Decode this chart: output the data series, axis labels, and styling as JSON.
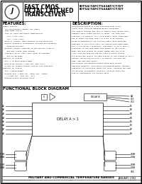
{
  "title_line1": "FAST CMOS",
  "title_line2": "OCTAL LATCHED",
  "title_line3": "TRANSCEIVER",
  "part_line1": "IDT54/74FCT543AT/CT/DT",
  "part_line2": "IDT54/74FCT544AT/CT/DT",
  "features_title": "FEATURES:",
  "description_title": "DESCRIPTION:",
  "block_diagram_title": "FUNCTIONAL BLOCK DIAGRAM",
  "footer_mil": "MILITARY AND COMMERCIAL TEMPERATURE RANGES",
  "footer_date": "JANUARY 1992",
  "footer_copy": "©1993 Integrated Device Technology, Inc.",
  "footer_rev": "R-9",
  "footer_doc": "DSC-0001",
  "bg_color": "#f0f0f0",
  "features": [
    "Common features",
    "  Low input/output leakage <1μA (max.)",
    "  CMOS power levels",
    "  True TTL input and output compatibility",
    "    •VIH = 2.0V (typ.)",
    "    •VIL = 0.8V (typ.)",
    "  Meets or exceeds JEDEC standard 18 specifications",
    "  Product available in Radiation Tolerant and Radiation",
    "    Enhanced versions",
    "  Military product compliant to MIL-STD-883, Class B",
    "    and CECC listed (dual marked)",
    "  Available in SO, SOIC, SSOP, QSOP, DX packages",
    "    and LCC packages",
    "Features for FCT543:",
    "  Std. A, B and D speed grades",
    "  High-drive outputs (-64mA typ, 12mA typ.)",
    "  Allows all disable outputs control line inversion",
    "Features for FCT544:",
    "  Std. A speed grades",
    "  Receive only (-1mHz typ, -500μA typ. -200μA)",
    "    (-4.5mA typ, -12mA typ, -30.)",
    "  Reduced system switching noise"
  ],
  "description": [
    "The FCT543/FCT544T1 is a non-inverting octal trans-",
    "ceiver built using an advanced BiCMOS technology.",
    "This device contains two sets of eight D-type latches with",
    "separate input-output control to select. For data flow",
    "from bus A to buses B: the A-to-B Enable (CEAB) input must",
    "LOW to enable the data from A to B-bus to be latched.",
    "B1-B8 as indicated in the Function Table. With CEAB LOW,",
    "LEAB goes to the A-to-B latch (if latched CEAB input makes",
    "the A to B latches transparent, subsequent A1-A8-to-send a",
    "transition at the LEAB input must appear in the strobe",
    "mode) and then outputs no longer change with the A1-A8.",
    "After CEAB and CEAB are LOW and clear B output latches",
    "are active and reflect the data present at the outputs of the A-",
    "latches. FCT543 and FCT B to A is similar, but uses the",
    "CEBA, LEBA and CEBA inputs.",
    "The FCT544T1 has balanced output drive with current",
    "limiting resistors. This offers bus powered bounce, minimal",
    "undershoot on controlled output bit-lines, reducing the need",
    "for external termination resistors. FCT544T1 parts are",
    "drop-in replacements for FCT543T parts."
  ]
}
